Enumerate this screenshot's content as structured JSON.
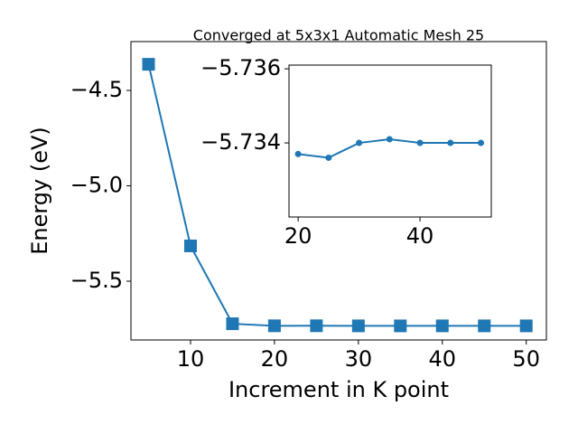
{
  "chart_data": [
    {
      "type": "line",
      "title": "Converged at 5x3x1 Automatic Mesh 25",
      "xlabel": "Increment in K point",
      "ylabel": "Energy (eV)",
      "x": [
        5,
        10,
        15,
        20,
        25,
        30,
        35,
        40,
        45,
        50
      ],
      "values": [
        -4.363,
        -5.315,
        -5.723,
        -5.7337,
        -5.7336,
        -5.734,
        -5.7341,
        -5.734,
        -5.734,
        -5.734
      ],
      "color": "#1f77b4",
      "marker": "square",
      "xlim": [
        2.9,
        52.4
      ],
      "ylim": [
        -5.808,
        -4.244
      ],
      "xticks": [
        10,
        20,
        30,
        40,
        50
      ],
      "yticks": [
        {
          "value": -4.5,
          "label": "−4.5"
        },
        {
          "value": -5.0,
          "label": "−5.0"
        },
        {
          "value": -5.5,
          "label": "−5.5"
        }
      ]
    },
    {
      "type": "line",
      "x": [
        20,
        25,
        30,
        35,
        40,
        45,
        50
      ],
      "values": [
        -5.7337,
        -5.7336,
        -5.734,
        -5.7341,
        -5.734,
        -5.734,
        -5.734
      ],
      "color": "#1f77b4",
      "marker": "circle",
      "xlim": [
        18.5,
        51.7
      ],
      "ylim": [
        -5.732,
        -5.7361
      ],
      "xticks": [
        20,
        40
      ],
      "yticks": [
        {
          "value": -5.736,
          "label": "−5.736"
        },
        {
          "value": -5.734,
          "label": "−5.734"
        }
      ]
    }
  ]
}
